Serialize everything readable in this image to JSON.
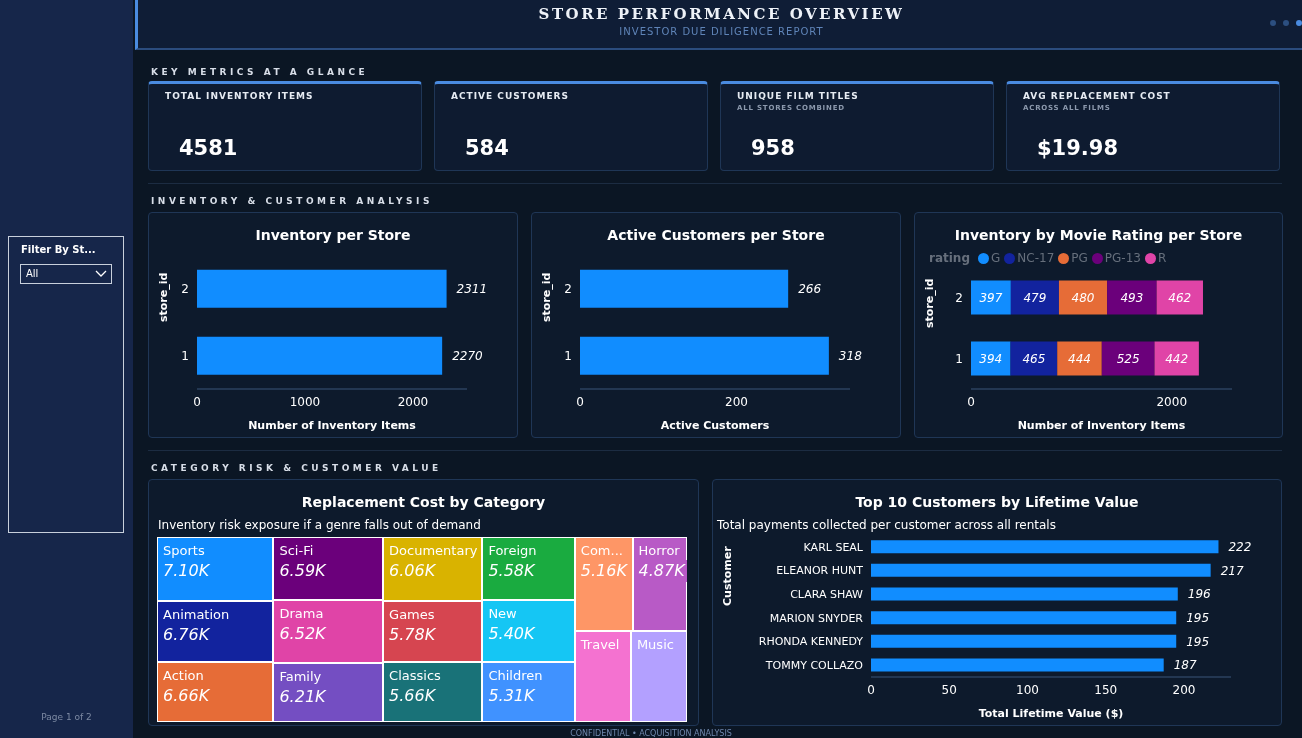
{
  "chart_data": [
    {
      "type": "other",
      "title": "STORE PERFORMANCE OVERVIEW",
      "subtitle": "INVESTOR DUE DILIGENCE REPORT",
      "annotations": [
        "KEY METRICS AT A GLANCE",
        "TOTAL INVENTORY ITEMS",
        "4581",
        "ACTIVE CUSTOMERS",
        "584",
        "UNIQUE FILM TITLES",
        "ALL STORES COMBINED",
        "958",
        "AVG REPLACEMENT COST",
        "ACROSS ALL FILMS",
        "$19.98",
        "INVENTORY & CUSTOMER ANALYSIS",
        "CATEGORY RISK & CUSTOMER VALUE",
        "Filter By St...",
        "All",
        "Page 1 of 2",
        "CONFIDENTIAL • ACQUISITION ANALYSIS"
      ]
    },
    {
      "type": "bar",
      "orientation": "horizontal",
      "title": "Inventory per Store",
      "xlabel": "Number of Inventory Items",
      "ylabel": "store_id",
      "categories": [
        "2",
        "1"
      ],
      "values": [
        2311,
        2270
      ],
      "color": "#118dff",
      "xlim": [
        0,
        2500
      ],
      "xticks": [
        0,
        1000,
        2000
      ],
      "data_labels": true
    },
    {
      "type": "bar",
      "orientation": "horizontal",
      "title": "Active Customers per Store",
      "xlabel": "Active Customers",
      "ylabel": "store_id",
      "categories": [
        "2",
        "1"
      ],
      "values": [
        266,
        318
      ],
      "color": "#118dff",
      "xlim": [
        0,
        345
      ],
      "xticks": [
        0,
        200
      ],
      "data_labels": true
    },
    {
      "type": "bar",
      "orientation": "horizontal",
      "stacked": true,
      "title": "Inventory by Movie Rating per Store",
      "xlabel": "Number of Inventory Items",
      "ylabel": "store_id",
      "legend_title": "rating",
      "legend": "top left",
      "categories": [
        "2",
        "1"
      ],
      "xlim": [
        0,
        2600
      ],
      "xticks": [
        0,
        2000
      ],
      "data_labels": true,
      "series": [
        {
          "name": "G",
          "color": "#118dff",
          "values": [
            397,
            394
          ]
        },
        {
          "name": "NC-17",
          "color": "#12239e",
          "values": [
            479,
            465
          ]
        },
        {
          "name": "PG",
          "color": "#e66c37",
          "values": [
            480,
            444
          ]
        },
        {
          "name": "PG-13",
          "color": "#6b007b",
          "values": [
            493,
            525
          ]
        },
        {
          "name": "R",
          "color": "#e044a7",
          "values": [
            462,
            442
          ]
        }
      ]
    },
    {
      "type": "other",
      "title": "Replacement Cost by Category",
      "subtitle": "Inventory risk exposure if a genre falls out of demand",
      "categories": [
        "Sports",
        "Animation",
        "Action",
        "Sci-Fi",
        "Drama",
        "Family",
        "Documentary",
        "Games",
        "Classics",
        "Foreign",
        "New",
        "Children",
        "Com...",
        "Horror",
        "Travel",
        "Music"
      ],
      "values": [
        7100,
        6760,
        6660,
        6590,
        6520,
        6210,
        6060,
        5780,
        5660,
        5580,
        5400,
        5310,
        5160,
        4870,
        null,
        null
      ],
      "value_labels": [
        "7.10K",
        "6.76K",
        "6.66K",
        "6.59K",
        "6.52K",
        "6.21K",
        "6.06K",
        "5.78K",
        "5.66K",
        "5.58K",
        "5.40K",
        "5.31K",
        "5.16K",
        "4.87K",
        null,
        null
      ],
      "colors": [
        "#118dff",
        "#12239e",
        "#e66c37",
        "#6b007b",
        "#e044a7",
        "#744ec2",
        "#d9b300",
        "#d64550",
        "#197278",
        "#1aab40",
        "#15c6f4",
        "#4092ff",
        "#fe9666",
        "#b85ac6",
        "#f472d0",
        "#b3a0ff"
      ]
    },
    {
      "type": "bar",
      "orientation": "horizontal",
      "title": "Top 10 Customers by Lifetime Value",
      "subtitle": "Total payments collected per customer across all rentals",
      "xlabel": "Total Lifetime Value ($)",
      "ylabel": "Customer",
      "categories": [
        "KARL SEAL",
        "ELEANOR HUNT",
        "CLARA SHAW",
        "MARION SNYDER",
        "RHONDA KENNEDY",
        "TOMMY COLLAZO"
      ],
      "values": [
        222,
        217,
        196,
        195,
        195,
        187
      ],
      "color": "#118dff",
      "xlim": [
        0,
        230
      ],
      "xticks": [
        0,
        50,
        100,
        150,
        200
      ],
      "data_labels": true
    }
  ]
}
